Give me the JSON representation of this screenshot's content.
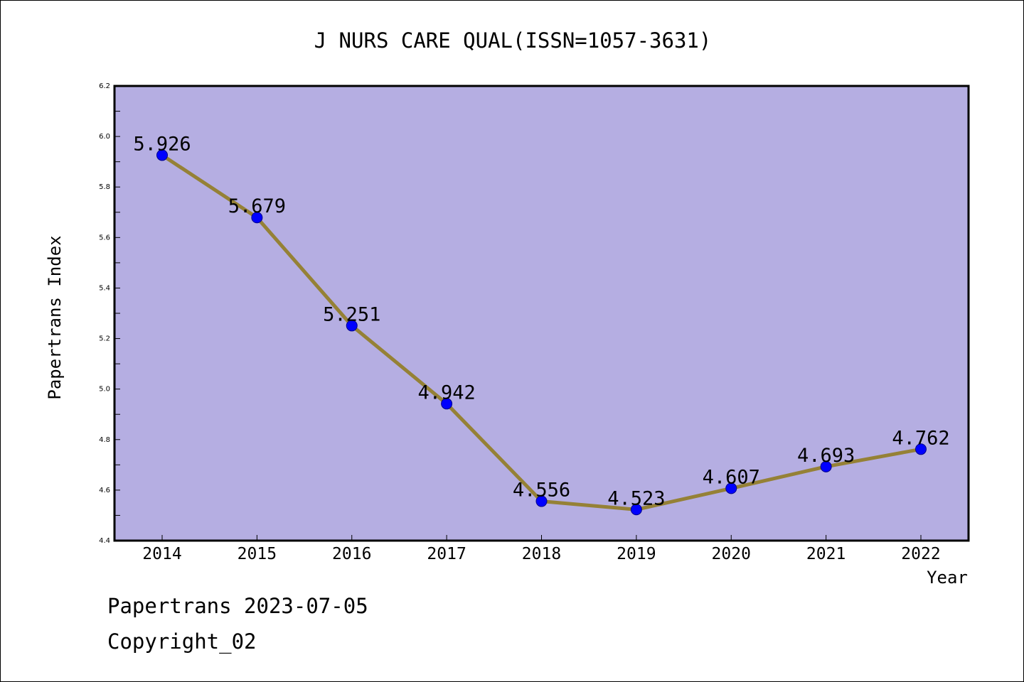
{
  "colors": {
    "plot_background": "#b5aee2",
    "line": "#958136",
    "marker": "#0000ff",
    "marker_edge": "#00008b",
    "axis": "#000000",
    "text": "#000000"
  },
  "chart_data": {
    "type": "line",
    "title": "J NURS CARE QUAL(ISSN=1057-3631)",
    "xlabel": "Year",
    "ylabel": "Papertrans Index",
    "x": [
      "2014",
      "2015",
      "2016",
      "2017",
      "2018",
      "2019",
      "2020",
      "2021",
      "2022"
    ],
    "series": [
      {
        "values": [
          5.926,
          5.679,
          5.251,
          4.942,
          4.556,
          4.523,
          4.607,
          4.693,
          4.762
        ],
        "labels": [
          "5.926",
          "5.679",
          "5.251",
          "4.942",
          "4.556",
          "4.523",
          "4.607",
          "4.693",
          "4.762"
        ]
      }
    ],
    "ylim": [
      4.4,
      6.2
    ],
    "yticks": [
      "4.4",
      "4.6",
      "4.8",
      "5.0",
      "5.2",
      "5.4",
      "5.6",
      "5.8",
      "6.0",
      "6.2"
    ],
    "grid": false,
    "legend": "none"
  },
  "footer": {
    "line1": "Papertrans 2023-07-05",
    "line2": "Copyright_02"
  }
}
